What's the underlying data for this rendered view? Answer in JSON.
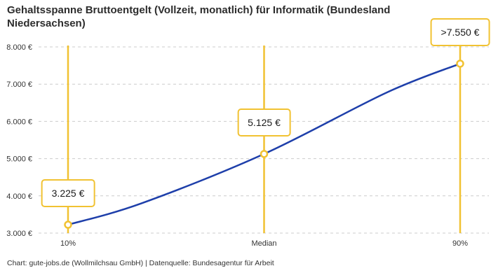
{
  "header": {
    "title": "Gehaltsspanne Bruttoentgelt (Vollzeit, monatlich) für Informatik (Bundesland\nNiedersachsen)"
  },
  "footer": {
    "credit": "Chart: gute-jobs.de (Wollmilchsau GmbH) | Datenquelle: Bundesagentur für Arbeit"
  },
  "chart_data": {
    "type": "line",
    "title": "Gehaltsspanne Bruttoentgelt (Vollzeit, monatlich) für Informatik (Bundesland Niedersachsen)",
    "x_axis": {
      "categories": [
        "10%",
        "Median",
        "90%"
      ],
      "percentile_range": [
        10,
        90
      ]
    },
    "y_axis": {
      "range": [
        3000,
        8000
      ],
      "grid": "dashed-horizontal",
      "ticks": [
        {
          "value": 3000,
          "label": "3.000 €"
        },
        {
          "value": 4000,
          "label": "4.000 €"
        },
        {
          "value": 5000,
          "label": "5.000 €"
        },
        {
          "value": 6000,
          "label": "6.000 €"
        },
        {
          "value": 7000,
          "label": "7.000 €"
        },
        {
          "value": 8000,
          "label": "8.000 €"
        }
      ]
    },
    "points": [
      {
        "category": "10%",
        "percentile": 10,
        "value": 3225,
        "label": "3.225 €"
      },
      {
        "category": null,
        "percentile": 25,
        "value": 3800,
        "label": null
      },
      {
        "category": "Median",
        "percentile": 50,
        "value": 5125,
        "label": "5.125 €"
      },
      {
        "category": null,
        "percentile": 75,
        "value": 6775,
        "label": null
      },
      {
        "category": "90%",
        "percentile": 90,
        "value": 7550,
        "label": ">7.550 €"
      }
    ],
    "legend": "none",
    "colors": {
      "line": "#1E3FAA",
      "accent": "#F1C232",
      "grid": "#CCCCCC",
      "title_text": "#2D2D2D",
      "tick_text": "#333333"
    }
  }
}
